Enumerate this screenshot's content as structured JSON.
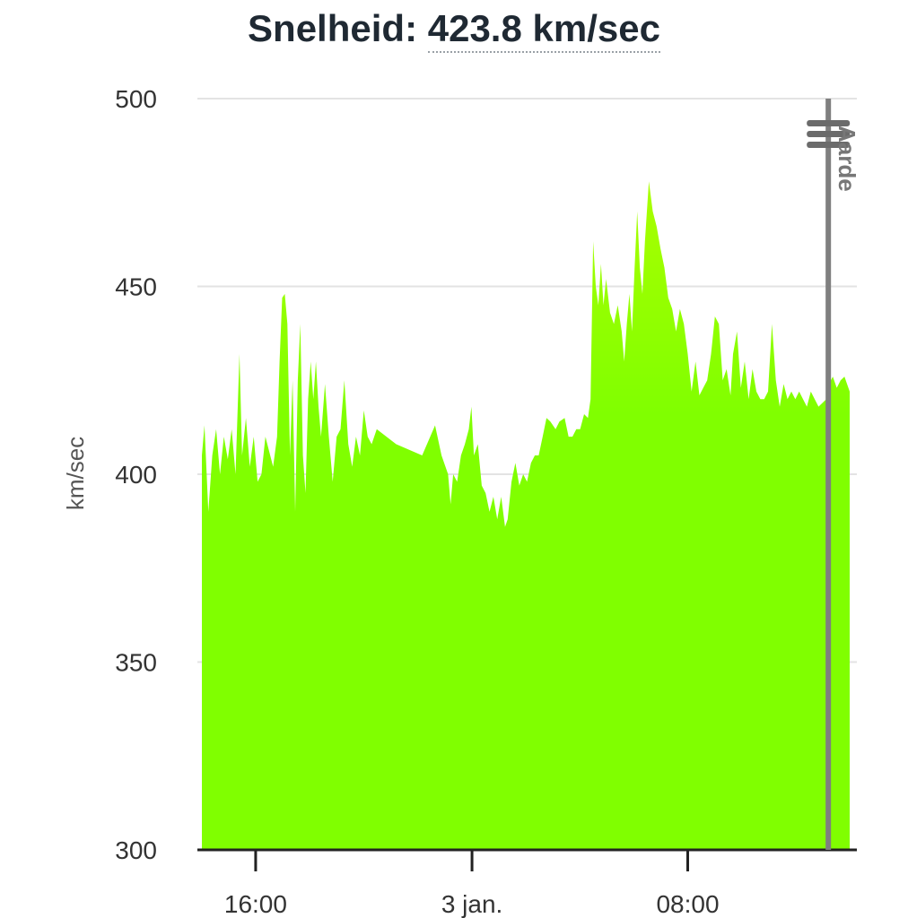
{
  "header": {
    "label": "Snelheid:",
    "value": "423.8 km/sec"
  },
  "chart_data": {
    "type": "area",
    "title": "Snelheid: 423.8 km/sec",
    "ylabel": "km/sec",
    "xlabel": "",
    "ylim": [
      300,
      500
    ],
    "yticks": [
      300,
      350,
      400,
      450,
      500
    ],
    "xlim": [
      0,
      1.0
    ],
    "xticks": [
      {
        "label": "16:00",
        "x": 0.083
      },
      {
        "label": "3 jan.",
        "x": 0.417
      },
      {
        "label": "08:00",
        "x": 0.75
      }
    ],
    "grid": true,
    "fill_color": "#80ff00",
    "fill_color_top": "#aaff00",
    "marker": {
      "label": "Aarde",
      "x": 0.967,
      "color": "#7f7f7f"
    },
    "series": [
      {
        "values": [
          [
            0.0,
            405
          ],
          [
            0.004,
            413
          ],
          [
            0.01,
            390
          ],
          [
            0.016,
            405
          ],
          [
            0.022,
            412
          ],
          [
            0.028,
            400
          ],
          [
            0.034,
            410
          ],
          [
            0.04,
            404
          ],
          [
            0.046,
            412
          ],
          [
            0.052,
            400
          ],
          [
            0.058,
            432
          ],
          [
            0.062,
            405
          ],
          [
            0.068,
            415
          ],
          [
            0.074,
            402
          ],
          [
            0.08,
            410
          ],
          [
            0.086,
            398
          ],
          [
            0.092,
            400
          ],
          [
            0.098,
            410
          ],
          [
            0.104,
            406
          ],
          [
            0.11,
            402
          ],
          [
            0.116,
            410
          ],
          [
            0.12,
            430
          ],
          [
            0.124,
            447
          ],
          [
            0.128,
            448
          ],
          [
            0.132,
            440
          ],
          [
            0.136,
            405
          ],
          [
            0.14,
            425
          ],
          [
            0.144,
            390
          ],
          [
            0.148,
            425
          ],
          [
            0.152,
            440
          ],
          [
            0.156,
            405
          ],
          [
            0.16,
            395
          ],
          [
            0.164,
            420
          ],
          [
            0.168,
            430
          ],
          [
            0.172,
            420
          ],
          [
            0.176,
            430
          ],
          [
            0.18,
            418
          ],
          [
            0.184,
            410
          ],
          [
            0.19,
            424
          ],
          [
            0.196,
            410
          ],
          [
            0.202,
            398
          ],
          [
            0.208,
            410
          ],
          [
            0.214,
            412
          ],
          [
            0.22,
            425
          ],
          [
            0.226,
            408
          ],
          [
            0.232,
            402
          ],
          [
            0.238,
            410
          ],
          [
            0.244,
            405
          ],
          [
            0.25,
            417
          ],
          [
            0.256,
            410
          ],
          [
            0.262,
            408
          ],
          [
            0.27,
            412
          ],
          [
            0.3,
            408
          ],
          [
            0.34,
            405
          ],
          [
            0.36,
            413
          ],
          [
            0.37,
            405
          ],
          [
            0.38,
            400
          ],
          [
            0.384,
            392
          ],
          [
            0.388,
            400
          ],
          [
            0.394,
            398
          ],
          [
            0.4,
            405
          ],
          [
            0.406,
            408
          ],
          [
            0.412,
            412
          ],
          [
            0.416,
            418
          ],
          [
            0.42,
            405
          ],
          [
            0.426,
            408
          ],
          [
            0.432,
            397
          ],
          [
            0.438,
            395
          ],
          [
            0.444,
            390
          ],
          [
            0.45,
            394
          ],
          [
            0.456,
            388
          ],
          [
            0.462,
            394
          ],
          [
            0.468,
            386
          ],
          [
            0.472,
            388
          ],
          [
            0.478,
            398
          ],
          [
            0.484,
            403
          ],
          [
            0.49,
            397
          ],
          [
            0.496,
            400
          ],
          [
            0.502,
            398
          ],
          [
            0.508,
            403
          ],
          [
            0.514,
            405
          ],
          [
            0.52,
            405
          ],
          [
            0.526,
            410
          ],
          [
            0.532,
            415
          ],
          [
            0.538,
            414
          ],
          [
            0.546,
            412
          ],
          [
            0.552,
            414
          ],
          [
            0.56,
            415
          ],
          [
            0.566,
            410
          ],
          [
            0.572,
            410
          ],
          [
            0.578,
            412
          ],
          [
            0.584,
            412
          ],
          [
            0.59,
            416
          ],
          [
            0.596,
            415
          ],
          [
            0.6,
            420
          ],
          [
            0.604,
            462
          ],
          [
            0.608,
            450
          ],
          [
            0.612,
            445
          ],
          [
            0.616,
            456
          ],
          [
            0.62,
            445
          ],
          [
            0.624,
            452
          ],
          [
            0.63,
            443
          ],
          [
            0.636,
            440
          ],
          [
            0.642,
            445
          ],
          [
            0.648,
            438
          ],
          [
            0.652,
            430
          ],
          [
            0.656,
            440
          ],
          [
            0.66,
            448
          ],
          [
            0.664,
            438
          ],
          [
            0.668,
            455
          ],
          [
            0.672,
            470
          ],
          [
            0.676,
            455
          ],
          [
            0.68,
            448
          ],
          [
            0.684,
            462
          ],
          [
            0.69,
            478
          ],
          [
            0.696,
            470
          ],
          [
            0.702,
            466
          ],
          [
            0.708,
            460
          ],
          [
            0.714,
            455
          ],
          [
            0.72,
            447
          ],
          [
            0.726,
            444
          ],
          [
            0.732,
            438
          ],
          [
            0.738,
            444
          ],
          [
            0.744,
            440
          ],
          [
            0.75,
            432
          ],
          [
            0.756,
            422
          ],
          [
            0.762,
            430
          ],
          [
            0.768,
            421
          ],
          [
            0.774,
            423
          ],
          [
            0.78,
            425
          ],
          [
            0.786,
            432
          ],
          [
            0.792,
            442
          ],
          [
            0.798,
            440
          ],
          [
            0.804,
            425
          ],
          [
            0.81,
            428
          ],
          [
            0.816,
            421
          ],
          [
            0.82,
            432
          ],
          [
            0.826,
            438
          ],
          [
            0.832,
            423
          ],
          [
            0.838,
            430
          ],
          [
            0.844,
            420
          ],
          [
            0.85,
            428
          ],
          [
            0.856,
            422
          ],
          [
            0.862,
            420
          ],
          [
            0.868,
            420
          ],
          [
            0.874,
            422
          ],
          [
            0.88,
            440
          ],
          [
            0.886,
            425
          ],
          [
            0.892,
            418
          ],
          [
            0.898,
            424
          ],
          [
            0.904,
            420
          ],
          [
            0.91,
            422
          ],
          [
            0.916,
            420
          ],
          [
            0.922,
            422
          ],
          [
            0.928,
            420
          ],
          [
            0.934,
            418
          ],
          [
            0.94,
            422
          ],
          [
            0.946,
            420
          ],
          [
            0.952,
            418
          ],
          [
            0.958,
            419
          ],
          [
            0.964,
            420
          ],
          [
            0.968,
            424
          ],
          [
            0.974,
            426
          ],
          [
            0.98,
            423
          ],
          [
            0.986,
            425
          ],
          [
            0.992,
            426
          ],
          [
            1.0,
            422
          ]
        ]
      }
    ]
  }
}
